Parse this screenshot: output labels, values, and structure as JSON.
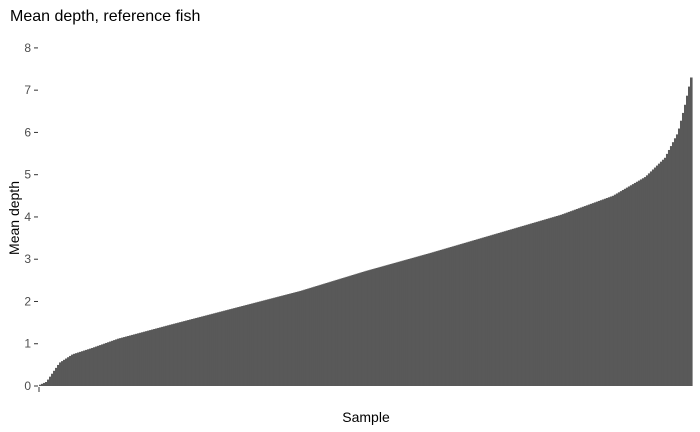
{
  "chart_data": {
    "type": "bar",
    "title": "Mean depth, reference fish",
    "xlabel": "Sample",
    "ylabel": "Mean depth",
    "ylim": [
      0,
      8.4
    ],
    "yticks": [
      0,
      1,
      2,
      3,
      4,
      5,
      6,
      7,
      8
    ],
    "grid": false,
    "legend": "none",
    "bar_color": "#595959",
    "sorted": "ascending",
    "n_samples": 326,
    "quantiles": [
      0,
      0.01,
      0.03,
      0.05,
      0.08,
      0.12,
      0.2,
      0.3,
      0.4,
      0.5,
      0.6,
      0.7,
      0.8,
      0.88,
      0.93,
      0.96,
      0.98,
      0.99,
      1.0
    ],
    "values_at_quantiles": [
      0.03,
      0.1,
      0.55,
      0.75,
      0.9,
      1.12,
      1.45,
      1.85,
      2.25,
      2.72,
      3.15,
      3.6,
      4.05,
      4.5,
      4.95,
      5.4,
      6.0,
      6.6,
      7.3
    ]
  }
}
